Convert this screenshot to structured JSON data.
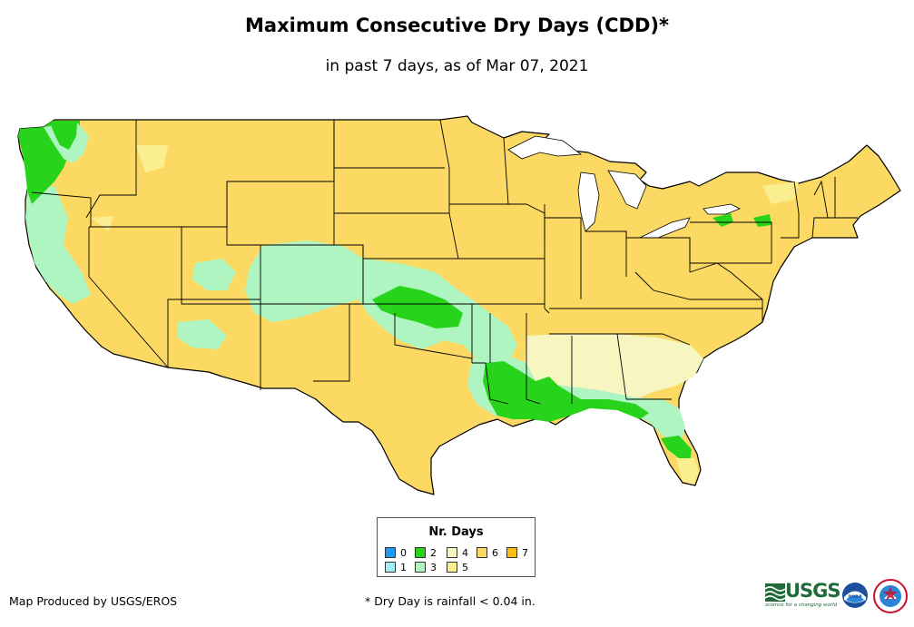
{
  "title": "Maximum Consecutive Dry Days (CDD)*",
  "subtitle": "in past 7 days, as of Mar 07, 2021",
  "legend": {
    "title": "Nr. Days",
    "items": [
      {
        "label": "0",
        "color": "#1e9bf0"
      },
      {
        "label": "1",
        "color": "#9ff0f5"
      },
      {
        "label": "2",
        "color": "#27d41b"
      },
      {
        "label": "3",
        "color": "#aef5c2"
      },
      {
        "label": "4",
        "color": "#f7f5c0"
      },
      {
        "label": "5",
        "color": "#fbee91"
      },
      {
        "label": "6",
        "color": "#fbd963"
      },
      {
        "label": "7",
        "color": "#f9bf14"
      }
    ]
  },
  "credit": "Map Produced by USGS/EROS",
  "footnote": "* Dry Day is rainfall < 0.04 in.",
  "logos": {
    "usgs": "USGS",
    "usgs_tagline": "science for a changing world",
    "noaa": "noaa",
    "nws": "nws-logo"
  },
  "map": {
    "base_color": "#fbd963",
    "border_color": "#000000"
  }
}
